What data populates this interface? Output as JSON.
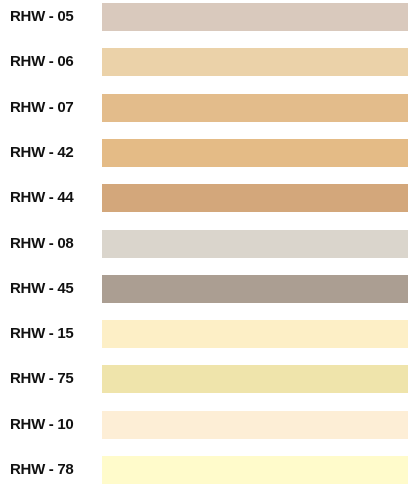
{
  "swatches": [
    {
      "label": "RHW - 05",
      "color": "#d9c9bd"
    },
    {
      "label": "RHW - 06",
      "color": "#ebd2a9"
    },
    {
      "label": "RHW - 07",
      "color": "#e3bc8b"
    },
    {
      "label": "RHW - 42",
      "color": "#e4bb86"
    },
    {
      "label": "RHW - 44",
      "color": "#d3a77b"
    },
    {
      "label": "RHW - 08",
      "color": "#dad5cc"
    },
    {
      "label": "RHW - 45",
      "color": "#ab9e92"
    },
    {
      "label": "RHW - 15",
      "color": "#fdefc6"
    },
    {
      "label": "RHW - 75",
      "color": "#efe4ab"
    },
    {
      "label": "RHW - 10",
      "color": "#fdeed6"
    },
    {
      "label": "RHW - 78",
      "color": "#fffbcb"
    }
  ]
}
